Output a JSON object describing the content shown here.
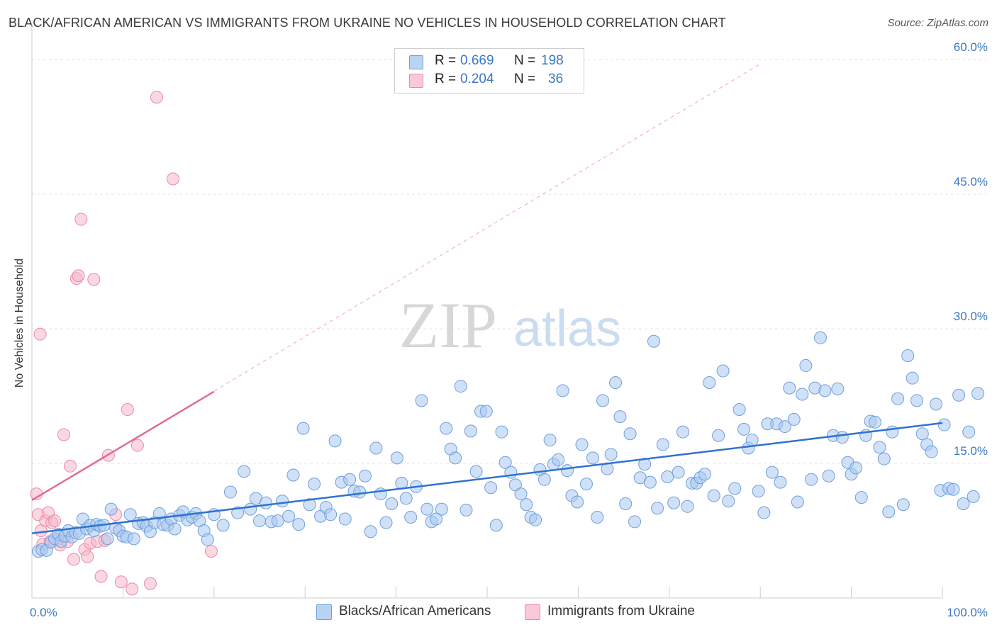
{
  "header": {
    "title": "BLACK/AFRICAN AMERICAN VS IMMIGRANTS FROM UKRAINE NO VEHICLES IN HOUSEHOLD CORRELATION CHART",
    "source": "Source: ZipAtlas.com"
  },
  "watermark": {
    "zip": "ZIP",
    "atlas": "atlas"
  },
  "legend": {
    "rows": [
      {
        "r_label": "R =",
        "r_value": "0.669",
        "n_label": "N =",
        "n_value": "198",
        "color": "#a9c8f0"
      },
      {
        "r_label": "R =",
        "r_value": "0.204",
        "n_label": "N =",
        "n_value": "36",
        "color": "#f5b8cb"
      }
    ]
  },
  "bottom_legend": {
    "items": [
      {
        "label": "Blacks/African Americans",
        "color": "#a9c8f0"
      },
      {
        "label": "Immigrants from Ukraine",
        "color": "#f5b8cb"
      }
    ]
  },
  "chart_data": {
    "type": "scatter",
    "title": "BLACK/AFRICAN AMERICAN VS IMMIGRANTS FROM UKRAINE NO VEHICLES IN HOUSEHOLD CORRELATION CHART",
    "xlabel": "",
    "ylabel": "No Vehicles in Household",
    "xlim": [
      0,
      100
    ],
    "ylim": [
      0,
      63
    ],
    "x_tick_labels": [
      "0.0%",
      "100.0%"
    ],
    "y_ticks": [
      15,
      30,
      45,
      60
    ],
    "y_tick_labels": [
      "15.0%",
      "30.0%",
      "45.0%",
      "60.0%"
    ],
    "grid": true,
    "legend_position": "top-center",
    "colors": {
      "blue_fill": "#a9c8f0",
      "blue_edge": "#6f9fdc",
      "blue_line": "#2f72d0",
      "pink_fill": "#f5b8cb",
      "pink_edge": "#eb8aa8",
      "pink_line": "#e26b92",
      "tick_label": "#3b78c4"
    },
    "series": [
      {
        "name": "Blacks/African Americans",
        "r": 0.669,
        "n": 198,
        "trend": {
          "x": [
            0,
            100
          ],
          "y": [
            7.2,
            19.5
          ]
        },
        "points": [
          [
            0.7,
            5.2
          ],
          [
            1.1,
            5.4
          ],
          [
            1.6,
            5.3
          ],
          [
            2.1,
            6.2
          ],
          [
            2.5,
            6.6
          ],
          [
            2.9,
            7.1
          ],
          [
            3.2,
            6.3
          ],
          [
            3.6,
            6.9
          ],
          [
            4.0,
            7.5
          ],
          [
            4.4,
            6.8
          ],
          [
            4.8,
            7.3
          ],
          [
            5.2,
            7.2
          ],
          [
            5.6,
            8.8
          ],
          [
            6.0,
            7.7
          ],
          [
            6.4,
            8.1
          ],
          [
            6.8,
            7.5
          ],
          [
            7.1,
            8.2
          ],
          [
            7.5,
            8.0
          ],
          [
            7.9,
            8.1
          ],
          [
            8.3,
            6.6
          ],
          [
            8.7,
            9.9
          ],
          [
            9.2,
            7.8
          ],
          [
            9.6,
            7.5
          ],
          [
            10.0,
            6.9
          ],
          [
            10.4,
            6.8
          ],
          [
            10.8,
            9.3
          ],
          [
            11.2,
            6.6
          ],
          [
            11.7,
            8.3
          ],
          [
            12.2,
            8.4
          ],
          [
            12.6,
            8.0
          ],
          [
            13.0,
            7.4
          ],
          [
            13.5,
            8.4
          ],
          [
            14.0,
            9.4
          ],
          [
            14.4,
            8.2
          ],
          [
            14.9,
            8.1
          ],
          [
            15.3,
            8.8
          ],
          [
            15.7,
            7.7
          ],
          [
            16.2,
            9.2
          ],
          [
            16.6,
            9.6
          ],
          [
            17.1,
            8.7
          ],
          [
            17.6,
            9.0
          ],
          [
            18.0,
            9.4
          ],
          [
            18.4,
            8.6
          ],
          [
            18.9,
            7.5
          ],
          [
            19.3,
            6.5
          ],
          [
            20.0,
            9.3
          ],
          [
            21.0,
            8.1
          ],
          [
            21.8,
            11.8
          ],
          [
            22.6,
            9.5
          ],
          [
            23.3,
            14.1
          ],
          [
            24.0,
            9.9
          ],
          [
            24.6,
            11.1
          ],
          [
            25.0,
            8.6
          ],
          [
            25.7,
            10.6
          ],
          [
            26.3,
            8.5
          ],
          [
            27.0,
            8.6
          ],
          [
            27.5,
            10.8
          ],
          [
            28.2,
            9.1
          ],
          [
            28.7,
            13.7
          ],
          [
            29.3,
            8.2
          ],
          [
            29.8,
            18.9
          ],
          [
            30.5,
            10.4
          ],
          [
            31.0,
            12.7
          ],
          [
            31.7,
            9.1
          ],
          [
            32.3,
            10.1
          ],
          [
            32.8,
            9.3
          ],
          [
            33.3,
            17.5
          ],
          [
            34.0,
            12.9
          ],
          [
            34.4,
            8.8
          ],
          [
            34.9,
            13.2
          ],
          [
            35.4,
            11.9
          ],
          [
            36.0,
            11.8
          ],
          [
            36.6,
            13.6
          ],
          [
            37.2,
            7.4
          ],
          [
            37.8,
            16.7
          ],
          [
            38.3,
            11.6
          ],
          [
            38.9,
            8.4
          ],
          [
            39.5,
            10.5
          ],
          [
            40.1,
            15.6
          ],
          [
            40.6,
            12.8
          ],
          [
            41.1,
            11.1
          ],
          [
            41.6,
            9.0
          ],
          [
            42.2,
            12.4
          ],
          [
            42.8,
            22.0
          ],
          [
            43.4,
            9.9
          ],
          [
            43.9,
            8.5
          ],
          [
            44.4,
            8.8
          ],
          [
            45.0,
            9.9
          ],
          [
            45.5,
            18.9
          ],
          [
            46.0,
            16.6
          ],
          [
            46.5,
            15.6
          ],
          [
            47.1,
            23.6
          ],
          [
            47.7,
            9.8
          ],
          [
            48.2,
            18.6
          ],
          [
            48.8,
            14.1
          ],
          [
            49.3,
            20.8
          ],
          [
            49.9,
            20.8
          ],
          [
            50.4,
            12.3
          ],
          [
            51.0,
            8.1
          ],
          [
            51.6,
            18.5
          ],
          [
            52.0,
            15.1
          ],
          [
            52.6,
            14.0
          ],
          [
            53.1,
            12.6
          ],
          [
            53.7,
            11.6
          ],
          [
            54.3,
            10.4
          ],
          [
            54.8,
            9.0
          ],
          [
            55.3,
            8.7
          ],
          [
            55.8,
            14.3
          ],
          [
            56.3,
            13.2
          ],
          [
            56.9,
            17.6
          ],
          [
            57.3,
            14.9
          ],
          [
            57.8,
            15.4
          ],
          [
            58.3,
            23.1
          ],
          [
            58.8,
            14.2
          ],
          [
            59.3,
            11.4
          ],
          [
            59.9,
            10.7
          ],
          [
            60.4,
            17.1
          ],
          [
            60.9,
            12.7
          ],
          [
            61.6,
            15.6
          ],
          [
            62.1,
            9.0
          ],
          [
            62.7,
            22.0
          ],
          [
            63.2,
            14.4
          ],
          [
            63.6,
            16.0
          ],
          [
            64.1,
            24.0
          ],
          [
            64.6,
            20.2
          ],
          [
            65.2,
            10.5
          ],
          [
            65.7,
            18.3
          ],
          [
            66.2,
            8.5
          ],
          [
            66.8,
            13.4
          ],
          [
            67.3,
            14.9
          ],
          [
            67.9,
            12.9
          ],
          [
            68.3,
            28.6
          ],
          [
            68.7,
            10.0
          ],
          [
            69.3,
            17.1
          ],
          [
            69.8,
            13.5
          ],
          [
            70.5,
            10.6
          ],
          [
            71.0,
            14.0
          ],
          [
            71.5,
            18.5
          ],
          [
            72.0,
            10.2
          ],
          [
            72.5,
            12.8
          ],
          [
            73.0,
            12.8
          ],
          [
            73.4,
            13.4
          ],
          [
            73.9,
            13.8
          ],
          [
            74.4,
            24.0
          ],
          [
            74.9,
            11.4
          ],
          [
            75.4,
            18.1
          ],
          [
            75.9,
            25.3
          ],
          [
            76.5,
            10.8
          ],
          [
            77.2,
            12.2
          ],
          [
            77.7,
            21.0
          ],
          [
            78.2,
            18.8
          ],
          [
            78.7,
            16.7
          ],
          [
            79.1,
            17.6
          ],
          [
            79.8,
            11.9
          ],
          [
            80.4,
            9.5
          ],
          [
            80.8,
            19.4
          ],
          [
            81.3,
            14.0
          ],
          [
            81.8,
            19.4
          ],
          [
            82.2,
            12.9
          ],
          [
            82.7,
            19.1
          ],
          [
            83.2,
            23.4
          ],
          [
            83.7,
            19.9
          ],
          [
            84.1,
            10.7
          ],
          [
            84.6,
            22.7
          ],
          [
            85.0,
            25.9
          ],
          [
            85.6,
            13.2
          ],
          [
            86.0,
            23.4
          ],
          [
            86.6,
            29.0
          ],
          [
            87.1,
            23.1
          ],
          [
            87.5,
            13.6
          ],
          [
            88.0,
            18.1
          ],
          [
            88.5,
            23.3
          ],
          [
            89.0,
            17.9
          ],
          [
            89.6,
            15.1
          ],
          [
            90.0,
            13.8
          ],
          [
            90.5,
            14.5
          ],
          [
            91.1,
            11.2
          ],
          [
            91.6,
            18.1
          ],
          [
            92.1,
            19.7
          ],
          [
            92.6,
            19.6
          ],
          [
            93.1,
            16.8
          ],
          [
            93.6,
            15.5
          ],
          [
            94.1,
            9.6
          ],
          [
            94.5,
            18.5
          ],
          [
            95.1,
            22.2
          ],
          [
            95.7,
            10.4
          ],
          [
            96.2,
            27.0
          ],
          [
            96.7,
            24.5
          ],
          [
            97.2,
            22.0
          ],
          [
            97.8,
            18.3
          ],
          [
            98.3,
            17.1
          ],
          [
            98.8,
            16.3
          ],
          [
            99.3,
            21.6
          ],
          [
            99.8,
            12.0
          ],
          [
            100.2,
            19.3
          ],
          [
            100.7,
            12.2
          ],
          [
            101.2,
            12.1
          ],
          [
            101.8,
            22.6
          ],
          [
            102.3,
            10.5
          ],
          [
            102.9,
            18.5
          ],
          [
            103.4,
            11.3
          ],
          [
            103.9,
            22.8
          ]
        ]
      },
      {
        "name": "Immigrants from Ukraine",
        "r": 0.204,
        "n": 36,
        "trend": {
          "x": [
            0,
            20
          ],
          "y": [
            10.9,
            23.0
          ]
        },
        "trend_extended": {
          "x": [
            0,
            80
          ],
          "y": [
            10.9,
            59.5
          ]
        },
        "points": [
          [
            0.5,
            11.6
          ],
          [
            0.7,
            9.3
          ],
          [
            0.9,
            29.4
          ],
          [
            1.0,
            7.5
          ],
          [
            1.2,
            6.0
          ],
          [
            1.5,
            8.6
          ],
          [
            1.8,
            9.5
          ],
          [
            2.0,
            6.3
          ],
          [
            2.2,
            8.4
          ],
          [
            2.5,
            8.6
          ],
          [
            2.8,
            6.5
          ],
          [
            3.1,
            5.9
          ],
          [
            3.5,
            18.2
          ],
          [
            3.9,
            6.3
          ],
          [
            4.2,
            14.7
          ],
          [
            4.6,
            4.3
          ],
          [
            4.9,
            35.6
          ],
          [
            5.1,
            35.9
          ],
          [
            5.4,
            42.2
          ],
          [
            5.8,
            5.4
          ],
          [
            6.1,
            4.6
          ],
          [
            6.4,
            6.1
          ],
          [
            6.8,
            35.5
          ],
          [
            7.2,
            6.3
          ],
          [
            7.6,
            2.4
          ],
          [
            8.0,
            6.4
          ],
          [
            8.4,
            15.9
          ],
          [
            9.2,
            9.3
          ],
          [
            9.8,
            1.8
          ],
          [
            10.5,
            21.0
          ],
          [
            11.0,
            1.0
          ],
          [
            11.6,
            17.0
          ],
          [
            13.0,
            1.6
          ],
          [
            13.7,
            55.8
          ],
          [
            15.5,
            46.7
          ],
          [
            19.7,
            5.2
          ]
        ]
      }
    ]
  }
}
